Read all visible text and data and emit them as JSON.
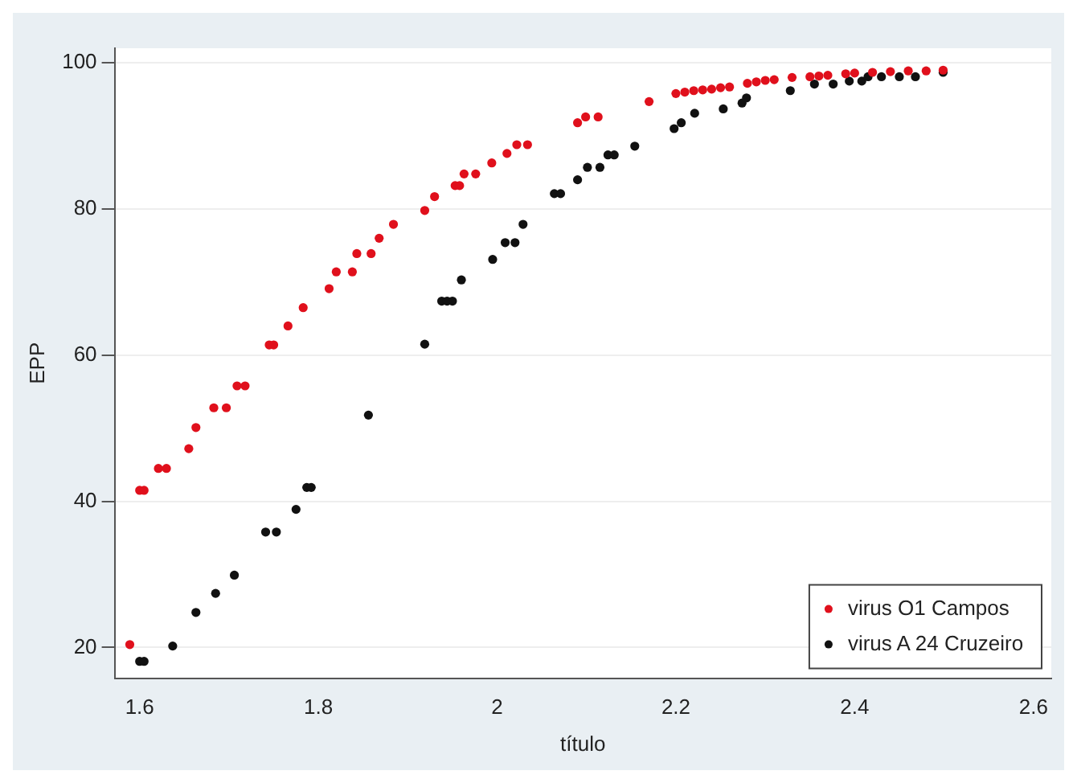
{
  "chart_data": {
    "type": "scatter",
    "xlabel": "título",
    "ylabel": "EPP",
    "xlim": [
      1.572,
      2.62
    ],
    "ylim": [
      15.8,
      102
    ],
    "xticks": [
      1.6,
      1.8,
      2,
      2.2,
      2.4,
      2.6
    ],
    "yticks": [
      20,
      40,
      60,
      80,
      100
    ],
    "grid": "y",
    "legend": "bottom right",
    "marker": "circle",
    "series": [
      {
        "name": "virus O1 Campos",
        "color": "#e0101c",
        "x": [
          1.589,
          1.6,
          1.605,
          1.621,
          1.63,
          1.655,
          1.663,
          1.683,
          1.697,
          1.709,
          1.718,
          1.745,
          1.75,
          1.766,
          1.783,
          1.812,
          1.82,
          1.838,
          1.843,
          1.859,
          1.868,
          1.884,
          1.919,
          1.93,
          1.953,
          1.958,
          1.963,
          1.976,
          1.994,
          2.011,
          2.022,
          2.034,
          2.09,
          2.099,
          2.113,
          2.17,
          2.2,
          2.21,
          2.22,
          2.23,
          2.24,
          2.25,
          2.26,
          2.28,
          2.29,
          2.3,
          2.31,
          2.33,
          2.35,
          2.36,
          2.37,
          2.39,
          2.4,
          2.42,
          2.44,
          2.46,
          2.48,
          2.499
        ],
        "values": [
          20.4,
          41.5,
          41.5,
          44.5,
          44.5,
          47.2,
          50.1,
          52.8,
          52.8,
          55.8,
          55.8,
          61.4,
          61.4,
          64,
          66.5,
          69.1,
          71.4,
          71.4,
          73.9,
          73.9,
          76,
          77.9,
          79.8,
          81.7,
          83.2,
          83.2,
          84.8,
          84.8,
          86.3,
          87.6,
          88.8,
          88.8,
          91.8,
          92.6,
          92.6,
          94.7,
          95.8,
          96,
          96.2,
          96.3,
          96.4,
          96.6,
          96.7,
          97.2,
          97.4,
          97.6,
          97.7,
          98,
          98.1,
          98.2,
          98.3,
          98.5,
          98.6,
          98.7,
          98.8,
          98.9,
          98.9,
          99
        ]
      },
      {
        "name": "virus A 24 Cruzeiro",
        "color": "#111111",
        "x": [
          1.6,
          1.605,
          1.637,
          1.663,
          1.685,
          1.706,
          1.741,
          1.753,
          1.775,
          1.787,
          1.792,
          1.856,
          1.919,
          1.938,
          1.944,
          1.95,
          1.96,
          1.995,
          2.009,
          2.02,
          2.029,
          2.064,
          2.071,
          2.09,
          2.101,
          2.115,
          2.124,
          2.131,
          2.154,
          2.198,
          2.206,
          2.221,
          2.253,
          2.274,
          2.279,
          2.328,
          2.355,
          2.376,
          2.394,
          2.408,
          2.415,
          2.43,
          2.45,
          2.468,
          2.499
        ],
        "values": [
          18.1,
          18.1,
          20.2,
          24.8,
          27.4,
          29.9,
          35.8,
          35.8,
          38.9,
          41.9,
          41.9,
          51.8,
          61.5,
          67.4,
          67.4,
          67.4,
          70.3,
          73.1,
          75.4,
          75.4,
          77.9,
          82.1,
          82.1,
          84,
          85.7,
          85.7,
          87.4,
          87.4,
          88.6,
          91,
          91.8,
          93.1,
          93.7,
          94.5,
          95.2,
          96.2,
          97.1,
          97.1,
          97.5,
          97.5,
          98.1,
          98.1,
          98.1,
          98.1,
          98.7
        ]
      }
    ]
  }
}
